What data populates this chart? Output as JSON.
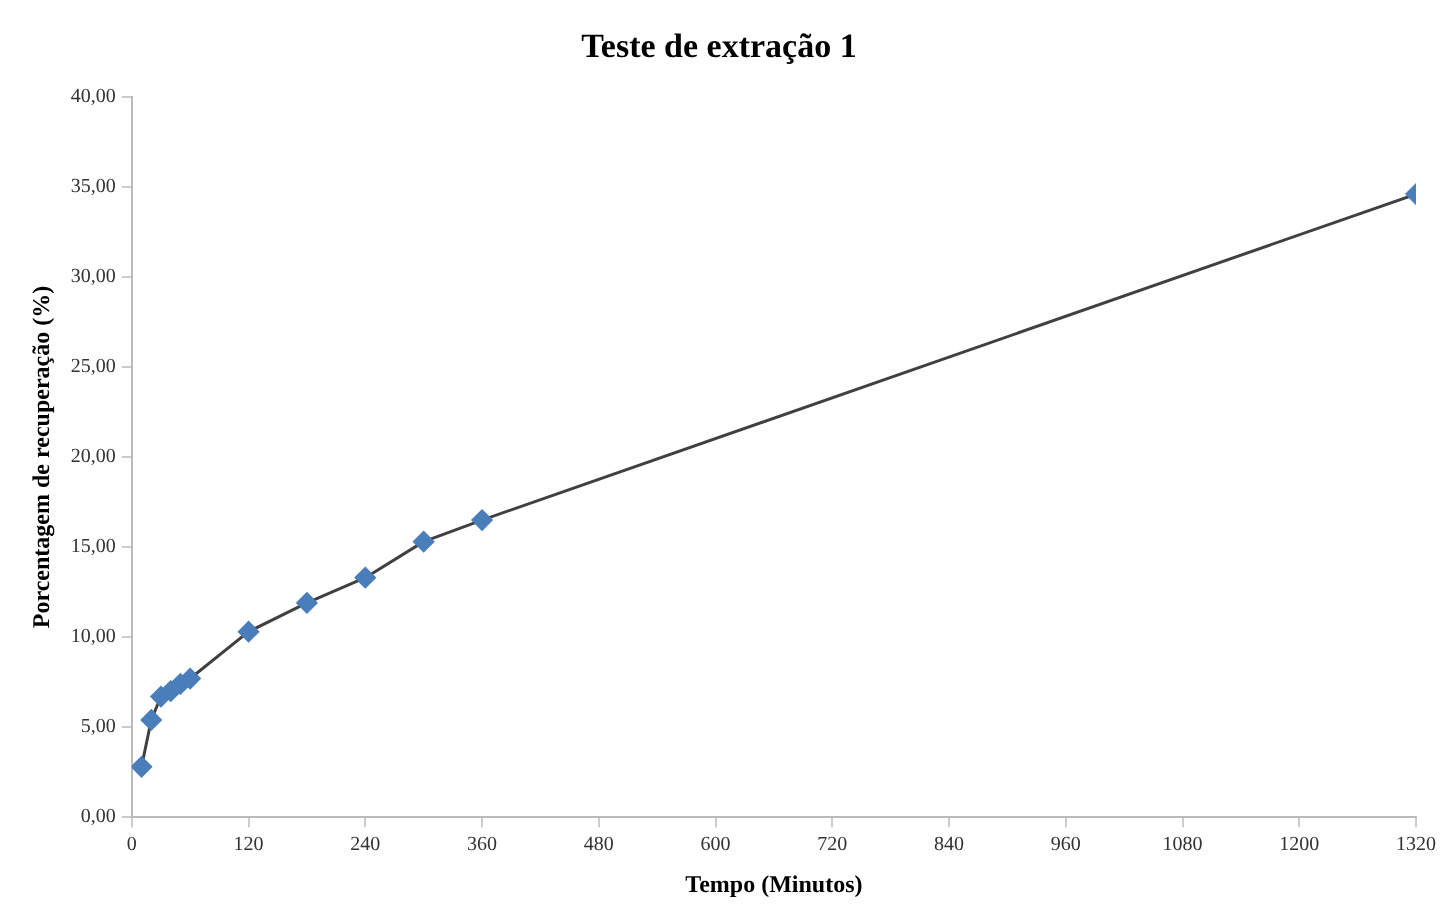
{
  "chart_data": {
    "type": "line",
    "title": "Teste de extração 1",
    "xlabel": "Tempo (Minutos)",
    "ylabel": "Porcentagem de recuperação (%)",
    "x": [
      10,
      20,
      30,
      40,
      50,
      60,
      120,
      180,
      240,
      300,
      360,
      1320
    ],
    "series": [
      {
        "color": "#4a7ebb",
        "values": [
          2.8,
          5.4,
          6.7,
          7.0,
          7.4,
          7.7,
          10.3,
          11.9,
          13.3,
          15.3,
          16.5,
          34.6
        ]
      }
    ],
    "xlim": [
      0,
      1320
    ],
    "xticks": [
      0,
      120,
      240,
      360,
      480,
      600,
      720,
      840,
      960,
      1080,
      1200,
      1320
    ],
    "ylim": [
      0,
      40
    ],
    "yticks": [
      {
        "value": 0,
        "label": "0,00"
      },
      {
        "value": 5,
        "label": "5,00"
      },
      {
        "value": 10,
        "label": "10,00"
      },
      {
        "value": 15,
        "label": "15,00"
      },
      {
        "value": 20,
        "label": "20,00"
      },
      {
        "value": 25,
        "label": "25,00"
      },
      {
        "value": 30,
        "label": "30,00"
      },
      {
        "value": 35,
        "label": "35,00"
      },
      {
        "value": 40,
        "label": "40,00"
      }
    ],
    "grid": false,
    "legend": false,
    "marker": "diamond",
    "line_style": "solid"
  }
}
